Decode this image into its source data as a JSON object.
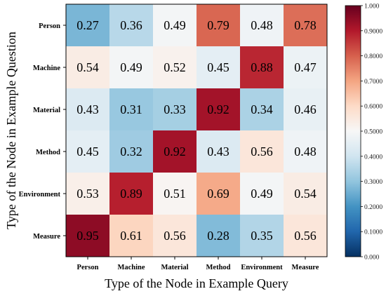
{
  "chart_data": {
    "type": "heatmap",
    "title": "",
    "xlabel": "Type of the Node in Example Query",
    "ylabel": "Type of the Node in Example Question",
    "x_categories": [
      "Person",
      "Machine",
      "Material",
      "Method",
      "Environment",
      "Measure"
    ],
    "y_categories": [
      "Person",
      "Machine",
      "Material",
      "Method",
      "Environment",
      "Measure"
    ],
    "values": [
      [
        "0.27",
        "0.36",
        "0.49",
        "0.79",
        "0.48",
        "0.78"
      ],
      [
        "0.54",
        "0.49",
        "0.52",
        "0.45",
        "0.88",
        "0.47"
      ],
      [
        "0.43",
        "0.31",
        "0.33",
        "0.92",
        "0.34",
        "0.46"
      ],
      [
        "0.45",
        "0.32",
        "0.92",
        "0.43",
        "0.56",
        "0.48"
      ],
      [
        "0.53",
        "0.89",
        "0.51",
        "0.69",
        "0.49",
        "0.54"
      ],
      [
        "0.95",
        "0.61",
        "0.56",
        "0.28",
        "0.35",
        "0.56"
      ]
    ],
    "colorbar": {
      "range": [
        0,
        1
      ],
      "ticks": [
        "0.000",
        "0.1000",
        "0.2000",
        "0.3000",
        "0.4000",
        "0.5000",
        "0.6000",
        "0.7000",
        "0.8000",
        "0.9000",
        "1.000"
      ],
      "colormap": "RdBu_r",
      "colors": [
        "#053061",
        "#2166ac",
        "#4393c3",
        "#92c5de",
        "#d1e5f0",
        "#f7f7f7",
        "#fddbc7",
        "#f4a582",
        "#d6604d",
        "#b2182b",
        "#67001f"
      ]
    },
    "grid": false,
    "legend": "colorbar-right"
  }
}
